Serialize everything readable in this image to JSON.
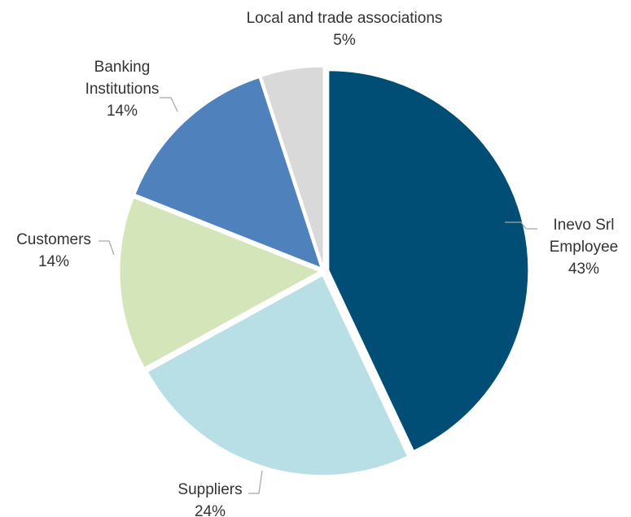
{
  "chart_data": {
    "type": "pie",
    "exploded": true,
    "slices": [
      {
        "label_lines": [
          "Inevo Srl",
          "Employee"
        ],
        "value": 43,
        "value_label": "43%",
        "color": "#004e76"
      },
      {
        "label_lines": [
          "Suppliers"
        ],
        "value": 24,
        "value_label": "24%",
        "color": "#b8dee6"
      },
      {
        "label_lines": [
          "Customers"
        ],
        "value": 14,
        "value_label": "14%",
        "color": "#d3e5b9"
      },
      {
        "label_lines": [
          "Banking",
          "Institutions"
        ],
        "value": 14,
        "value_label": "14%",
        "color": "#4f81bd"
      },
      {
        "label_lines": [
          "Local and trade associations"
        ],
        "value": 5,
        "value_label": "5%",
        "color": "#d9d9d9"
      }
    ]
  }
}
